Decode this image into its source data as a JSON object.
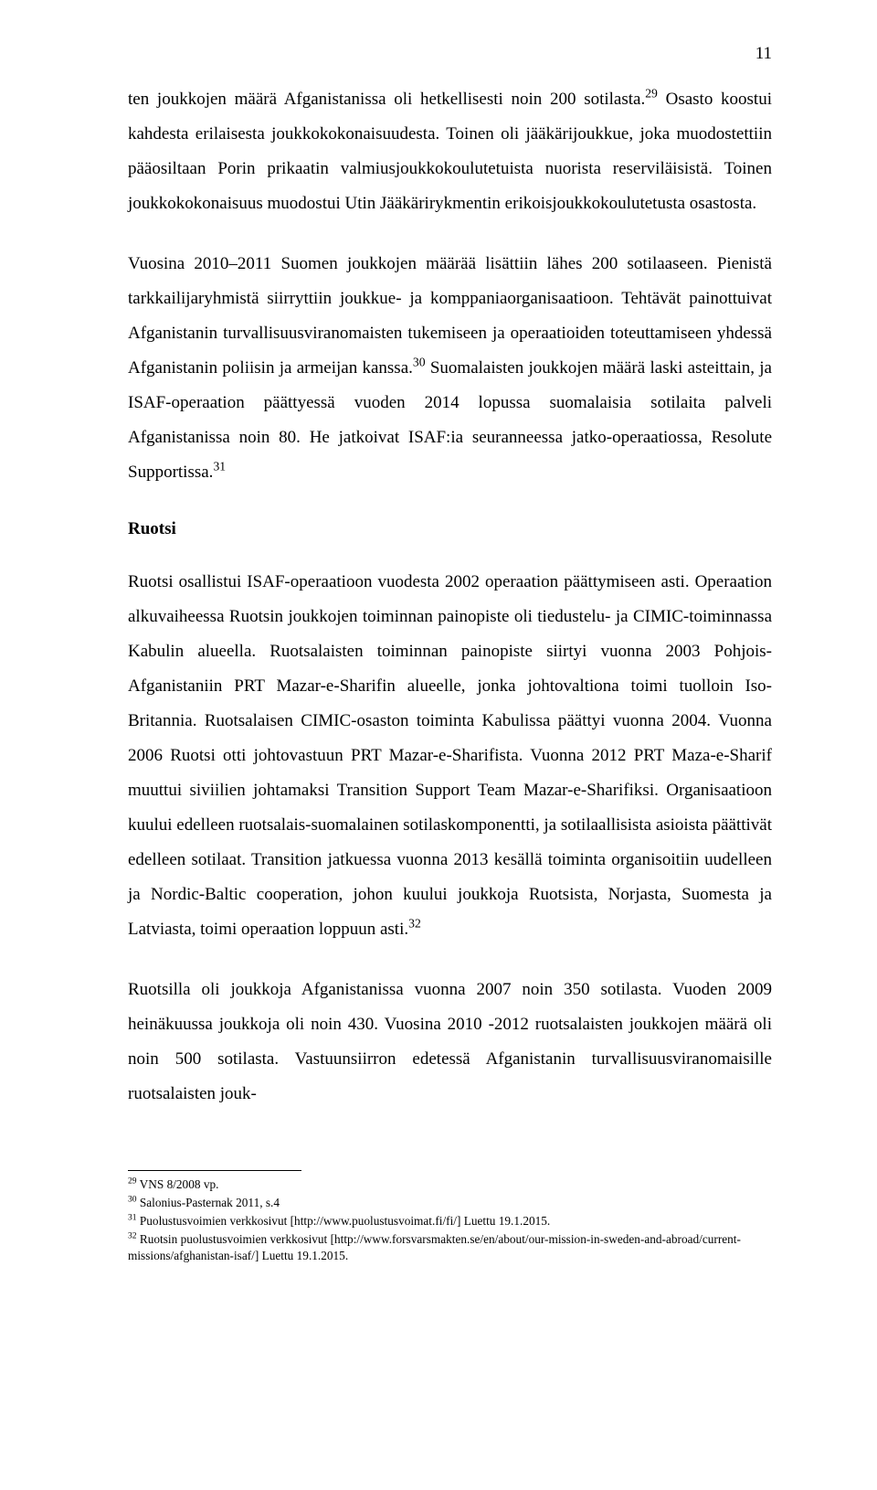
{
  "page_number": "11",
  "paragraphs": {
    "p1": "ten joukkojen määrä Afganistanissa oli hetkellisesti noin 200 sotilasta.",
    "p1_fn29": "29",
    "p1b": " Osasto koostui kahdesta erilaisesta joukkokokonaisuudesta. Toinen oli jääkärijoukkue, joka muodostettiin pääosiltaan Porin prikaatin valmiusjoukkokoulutetuista nuorista reserviläisistä. Toinen joukkokokonaisuus muodostui Utin Jääkärirykmentin erikoisjoukkokoulutetusta osastosta.",
    "p2": "Vuosina 2010–2011 Suomen joukkojen määrää lisättiin lähes 200 sotilaaseen. Pienistä tarkkailijaryhmistä siirryttiin joukkue- ja komppaniaorganisaatioon. Tehtävät painottuivat Afganistanin turvallisuusviranomaisten tukemiseen ja operaatioiden toteuttamiseen yhdessä Afganistanin poliisin ja armeijan kanssa.",
    "p2_fn30": "30",
    "p2b": " Suomalaisten joukkojen määrä laski asteittain, ja ISAF-operaation päättyessä vuoden 2014 lopussa suomalaisia sotilaita palveli Afganistanissa noin 80. He jatkoivat ISAF:ia seuranneessa jatko-operaatiossa, Resolute Supportissa.",
    "p2_fn31": "31",
    "h_ruotsi": "Ruotsi",
    "p3": "Ruotsi osallistui ISAF-operaatioon vuodesta 2002 operaation päättymiseen asti. Operaation alkuvaiheessa Ruotsin joukkojen toiminnan painopiste oli tiedustelu- ja CIMIC-toiminnassa Kabulin alueella. Ruotsalaisten toiminnan painopiste siirtyi vuonna 2003 Pohjois-Afganistaniin PRT Mazar-e-Sharifin alueelle, jonka johtovaltiona toimi tuolloin Iso-Britannia. Ruotsalaisen CIMIC-osaston toiminta Kabulissa päättyi vuonna 2004. Vuonna 2006 Ruotsi otti johtovastuun PRT Mazar-e-Sharifista. Vuonna 2012 PRT Maza-e-Sharif muuttui siviilien johtamaksi Transition Support Team Mazar-e-Sharifiksi. Organisaatioon kuului edelleen ruotsalais-suomalainen sotilaskomponentti, ja sotilaallisista asioista päättivät edelleen sotilaat. Transition jatkuessa vuonna 2013 kesällä toiminta organisoitiin uudelleen ja Nordic-Baltic cooperation, johon kuului joukkoja Ruotsista, Norjasta, Suomesta ja Latviasta, toimi operaation loppuun asti.",
    "p3_fn32": "32",
    "p4": "Ruotsilla oli joukkoja Afganistanissa vuonna 2007 noin 350 sotilasta. Vuoden 2009 heinäkuussa joukkoja oli noin 430. Vuosina 2010 -2012 ruotsalaisten joukkojen määrä oli noin 500 sotilasta. Vastuunsiirron edetessä Afganistanin turvallisuusviranomaisille ruotsalaisten jouk-"
  },
  "footnotes": {
    "f29_num": "29",
    "f29": " VNS 8/2008 vp.",
    "f30_num": "30",
    "f30": " Salonius-Pasternak 2011, s.4",
    "f31_num": "31",
    "f31": " Puolustusvoimien verkkosivut [http://www.puolustusvoimat.fi/fi/] Luettu 19.1.2015.",
    "f32_num": "32",
    "f32": " Ruotsin puolustusvoimien verkkosivut [http://www.forsvarsmakten.se/en/about/our-mission-in-sweden-and-abroad/current-missions/afghanistan-isaf/] Luettu 19.1.2015."
  }
}
